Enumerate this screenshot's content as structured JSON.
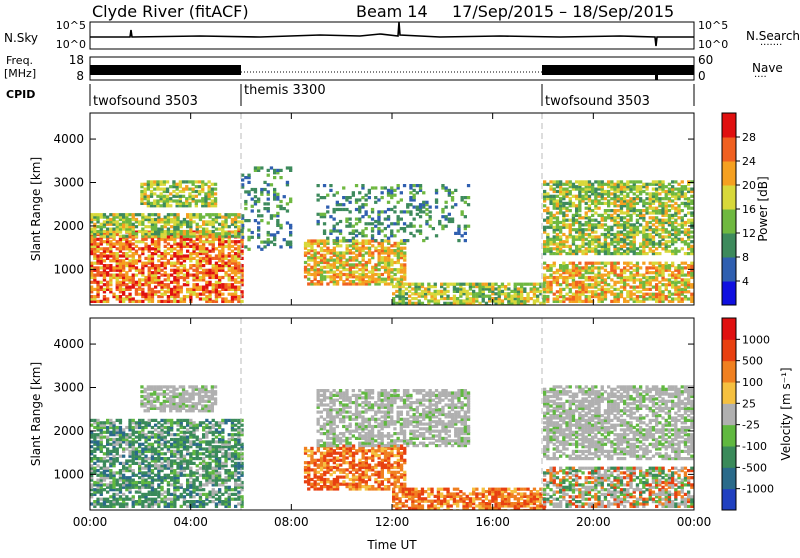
{
  "header": {
    "title": "Clyde River (fitACF)",
    "beam_info": "Beam 14",
    "date_range": "17/Sep/2015 – 18/Sep/2015"
  },
  "nsky_panel": {
    "left_label": "N.Sky",
    "left_tick_top": "10^5",
    "left_tick_bottom": "10^0",
    "right_tick_top": "10^5",
    "right_tick_bottom": "10^0",
    "right_label": "N.Search"
  },
  "freq_panel": {
    "left_label_line1": "Freq.",
    "left_label_line2": "[MHz]",
    "left_tick_top": "18",
    "left_tick_bottom": "8",
    "right_tick_top": "60",
    "right_tick_bottom": "0",
    "right_label": "Nave"
  },
  "cpid_panel": {
    "label": "CPID",
    "segments": [
      {
        "name": "twofsound 3503",
        "start_hour": 0,
        "end_hour": 6
      },
      {
        "name": "themis 3300",
        "start_hour": 6,
        "end_hour": 18
      },
      {
        "name": "twofsound 3503",
        "start_hour": 18,
        "end_hour": 24
      }
    ]
  },
  "chart_data": [
    {
      "type": "heatmap",
      "title": "",
      "xlabel": "",
      "ylabel": "Slant Range [km]",
      "xlim": [
        0,
        24
      ],
      "ylim": [
        180,
        4600
      ],
      "y_ticks": [
        1000,
        2000,
        3000,
        4000
      ],
      "y_tick_labels": [
        "1000",
        "2000",
        "3000",
        "4000"
      ],
      "colorbar": {
        "label": "Power [dB]",
        "tick_labels": [
          "4",
          "8",
          "12",
          "16",
          "20",
          "24",
          "28"
        ],
        "colors": [
          "#1010e0",
          "#2f5fb0",
          "#3d8a5c",
          "#6fb840",
          "#d8d83a",
          "#f5a020",
          "#f06020",
          "#e01010"
        ]
      },
      "echo_regions": [
        {
          "x": [
            0,
            6
          ],
          "y": [
            300,
            1900
          ],
          "level": "high"
        },
        {
          "x": [
            0,
            6
          ],
          "y": [
            1800,
            2300
          ],
          "level": "mid"
        },
        {
          "x": [
            2,
            5
          ],
          "y": [
            2500,
            3100
          ],
          "level": "mid"
        },
        {
          "x": [
            6,
            8
          ],
          "y": [
            1500,
            3400
          ],
          "level": "low-sparse"
        },
        {
          "x": [
            8.5,
            12.5
          ],
          "y": [
            700,
            1700
          ],
          "level": "mid-high"
        },
        {
          "x": [
            9,
            15
          ],
          "y": [
            1700,
            3000
          ],
          "level": "low-sparse"
        },
        {
          "x": [
            12,
            18
          ],
          "y": [
            200,
            700
          ],
          "level": "mid"
        },
        {
          "x": [
            18,
            24
          ],
          "y": [
            300,
            1200
          ],
          "level": "mid-high"
        },
        {
          "x": [
            18,
            24
          ],
          "y": [
            1400,
            3100
          ],
          "level": "low-mid"
        }
      ]
    },
    {
      "type": "heatmap",
      "title": "",
      "xlabel": "Time UT",
      "ylabel": "Slant Range [km]",
      "xlim": [
        0,
        24
      ],
      "ylim": [
        180,
        4600
      ],
      "x_ticks": [
        0,
        4,
        8,
        12,
        16,
        20,
        24
      ],
      "x_tick_labels": [
        "00:00",
        "04:00",
        "08:00",
        "12:00",
        "16:00",
        "20:00",
        "00:00"
      ],
      "y_ticks": [
        1000,
        2000,
        3000,
        4000
      ],
      "y_tick_labels": [
        "1000",
        "2000",
        "3000",
        "4000"
      ],
      "colorbar": {
        "label": "Velocity [m s⁻¹]",
        "tick_labels": [
          "1000",
          "500",
          "100",
          "25",
          "-25",
          "-100",
          "-500",
          "-1000"
        ],
        "colors": [
          "#2040c0",
          "#2a6a8a",
          "#3a8a5a",
          "#60b840",
          "#b0b0b0",
          "#f5c040",
          "#f08020",
          "#e84010",
          "#e01010"
        ]
      },
      "echo_regions": [
        {
          "x": [
            0,
            6
          ],
          "y": [
            300,
            2300
          ],
          "level": "toward"
        },
        {
          "x": [
            2,
            5
          ],
          "y": [
            2500,
            3100
          ],
          "level": "ground"
        },
        {
          "x": [
            8.5,
            12.5
          ],
          "y": [
            700,
            1700
          ],
          "level": "away"
        },
        {
          "x": [
            9,
            15
          ],
          "y": [
            1700,
            3000
          ],
          "level": "ground"
        },
        {
          "x": [
            12,
            18
          ],
          "y": [
            200,
            700
          ],
          "level": "away"
        },
        {
          "x": [
            18,
            24
          ],
          "y": [
            300,
            1200
          ],
          "level": "mixed"
        },
        {
          "x": [
            18,
            24
          ],
          "y": [
            1400,
            3100
          ],
          "level": "ground"
        }
      ]
    }
  ]
}
